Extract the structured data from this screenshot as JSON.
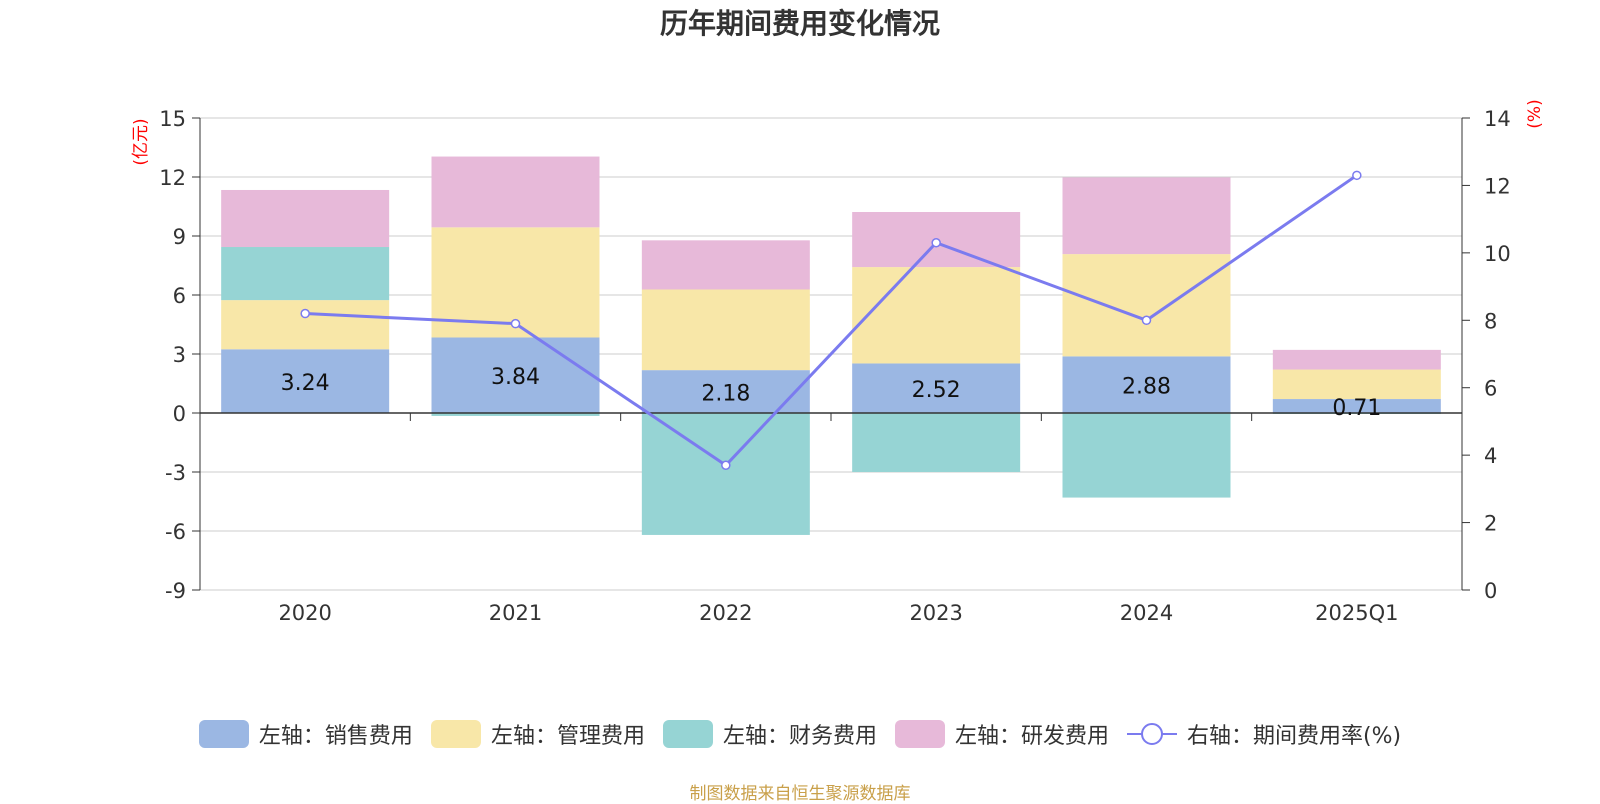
{
  "chart_data": {
    "type": "bar",
    "title": "历年期间费用变化情况",
    "categories": [
      "2020",
      "2021",
      "2022",
      "2023",
      "2024",
      "2025Q1"
    ],
    "left_axis": {
      "unit": "(亿元)",
      "ylim": [
        -9,
        15
      ],
      "ticks": [
        15,
        12,
        9,
        6,
        3,
        0,
        -3,
        -6,
        -9
      ]
    },
    "right_axis": {
      "unit": "(%)",
      "ylim": [
        0,
        14
      ],
      "ticks": [
        14,
        12,
        10,
        8,
        6,
        4,
        2,
        0
      ]
    },
    "series": [
      {
        "name": "左轴：销售费用",
        "axis": "left",
        "type": "bar",
        "color": "#9bb7e3",
        "values": [
          3.24,
          3.84,
          2.18,
          2.52,
          2.88,
          0.71
        ],
        "show_labels": true
      },
      {
        "name": "左轴：管理费用",
        "axis": "left",
        "type": "bar",
        "color": "#f8e7a8",
        "values": [
          2.5,
          5.6,
          4.1,
          4.9,
          5.2,
          1.5
        ]
      },
      {
        "name": "左轴：财务费用",
        "axis": "left",
        "type": "bar",
        "color": "#96d4d4",
        "values": [
          2.7,
          -0.15,
          -6.2,
          -3.0,
          -4.3,
          -0.05
        ]
      },
      {
        "name": "左轴：研发费用",
        "axis": "left",
        "type": "bar",
        "color": "#e7b9d9",
        "values": [
          2.9,
          3.6,
          2.5,
          2.8,
          3.9,
          1.0
        ]
      },
      {
        "name": "右轴：期间费用率(%)",
        "axis": "right",
        "type": "line",
        "color": "#7b7bef",
        "values": [
          8.2,
          7.9,
          3.7,
          10.3,
          8.0,
          12.3
        ]
      }
    ]
  },
  "source": "制图数据来自恒生聚源数据库"
}
